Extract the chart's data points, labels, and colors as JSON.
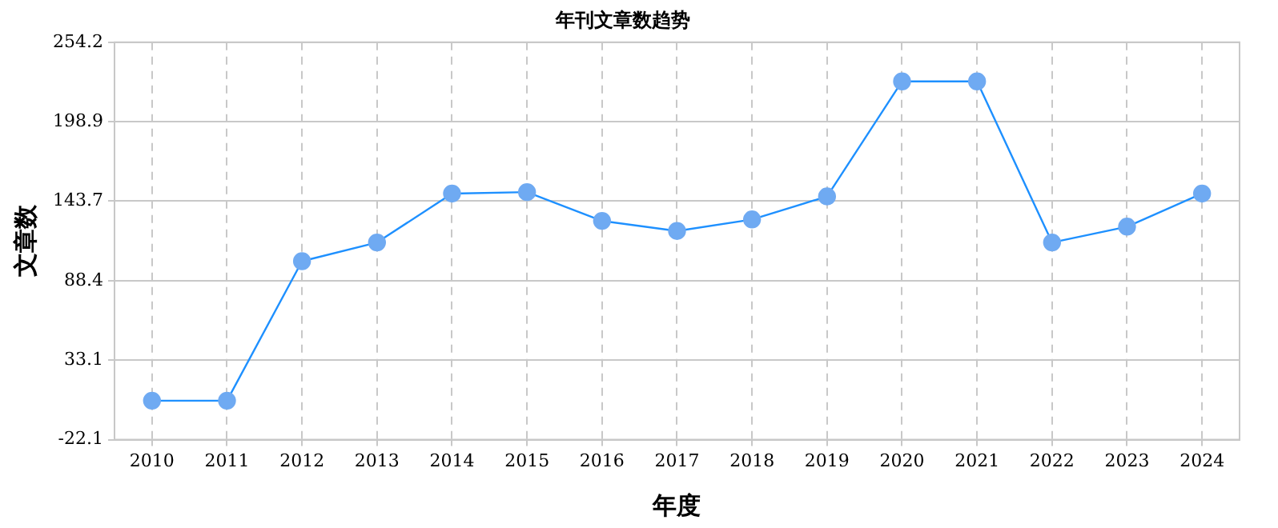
{
  "chart_data": {
    "type": "line",
    "title": "年刊文章数趋势",
    "xlabel": "年度",
    "ylabel": "文章数",
    "categories": [
      "2010",
      "2011",
      "2012",
      "2013",
      "2014",
      "2015",
      "2016",
      "2017",
      "2018",
      "2019",
      "2020",
      "2021",
      "2022",
      "2023",
      "2024"
    ],
    "series": [
      {
        "color": "#1e90ff",
        "values": [
          5,
          5,
          102,
          115,
          149,
          150,
          130,
          123,
          131,
          147,
          227,
          227,
          115,
          126,
          149
        ]
      }
    ],
    "ylim": [
      -22.1,
      254.2
    ],
    "yticks": [
      -22.1,
      33.1,
      88.4,
      143.7,
      198.9,
      254.2
    ],
    "grid": true,
    "legend": false,
    "marker": "circle",
    "line_style": "solid"
  }
}
